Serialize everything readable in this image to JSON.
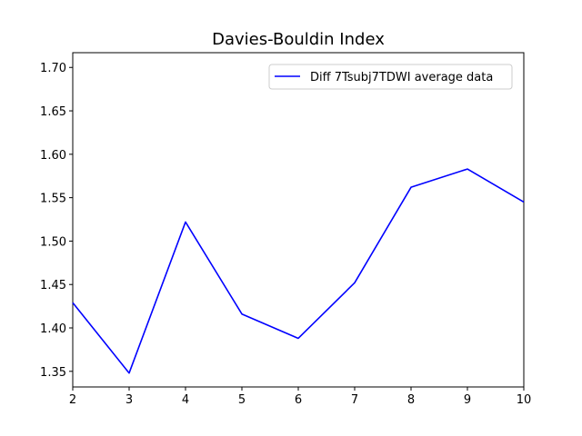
{
  "chart_data": {
    "type": "line",
    "title": "Davies-Bouldin Index",
    "xlabel": "",
    "ylabel": "",
    "x": [
      2,
      3,
      4,
      5,
      6,
      7,
      8,
      9,
      10
    ],
    "series": [
      {
        "name": "Diff 7Tsubj7TDWI average data",
        "color": "#0000ff",
        "values": [
          1.429,
          1.348,
          1.522,
          1.416,
          1.388,
          1.452,
          1.562,
          1.583,
          1.545
        ]
      }
    ],
    "xlim": [
      2,
      10
    ],
    "ylim": [
      1.332,
      1.717
    ],
    "xticks": [
      2,
      3,
      4,
      5,
      6,
      7,
      8,
      9,
      10
    ],
    "yticks": [
      1.35,
      1.4,
      1.45,
      1.5,
      1.55,
      1.6,
      1.65,
      1.7
    ],
    "ytick_labels": [
      "1.35",
      "1.40",
      "1.45",
      "1.50",
      "1.55",
      "1.60",
      "1.65",
      "1.70"
    ],
    "grid": false,
    "legend_position": "top-right"
  }
}
